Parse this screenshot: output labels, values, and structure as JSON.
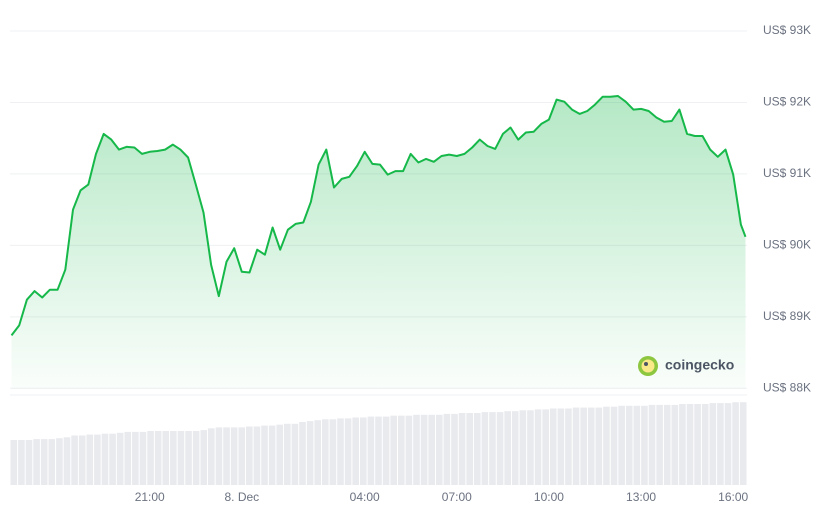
{
  "chart_data": {
    "type": "line",
    "color": "#16b84a",
    "area": true,
    "grid": true,
    "watermark": "coingecko",
    "x": [
      -7.5,
      -7.25,
      -7,
      -6.75,
      -6.5,
      -6.25,
      -6,
      -5.75,
      -5.5,
      -5.25,
      -5,
      -4.75,
      -4.5,
      -4.25,
      -4,
      -3.75,
      -3.5,
      -3.25,
      -3,
      -2.75,
      -2.5,
      -2.25,
      -2,
      -1.75,
      -1.5,
      -1.25,
      -1,
      -0.75,
      -0.5,
      -0.25,
      0,
      0.25,
      0.5,
      0.75,
      1,
      1.25,
      1.5,
      1.75,
      2,
      2.25,
      2.5,
      2.75,
      3,
      3.25,
      3.5,
      3.75,
      4,
      4.25,
      4.5,
      4.75,
      5,
      5.25,
      5.5,
      5.75,
      6,
      6.25,
      6.5,
      6.75,
      7,
      7.25,
      7.5,
      7.75,
      8,
      8.25,
      8.5,
      8.75,
      9,
      9.25,
      9.5,
      9.75,
      10,
      10.25,
      10.5,
      10.75,
      11,
      11.25,
      11.5,
      11.75,
      12,
      12.25,
      12.5,
      12.75,
      13,
      13.25,
      13.5,
      13.75,
      14,
      14.25,
      14.5,
      14.75,
      15,
      15.25,
      15.5,
      15.75,
      16,
      16.25,
      16.4
    ],
    "values": [
      88740,
      88880,
      89240,
      89360,
      89270,
      89380,
      89380,
      89660,
      90500,
      90770,
      90850,
      91280,
      91560,
      91480,
      91340,
      91380,
      91370,
      91280,
      91310,
      91320,
      91340,
      91410,
      91340,
      91230,
      90850,
      90460,
      89730,
      89290,
      89770,
      89960,
      89630,
      89620,
      89940,
      89870,
      90250,
      89940,
      90220,
      90300,
      90320,
      90610,
      91130,
      91340,
      90810,
      90930,
      90960,
      91110,
      91310,
      91140,
      91130,
      90990,
      91040,
      91040,
      91280,
      91160,
      91210,
      91170,
      91250,
      91270,
      91250,
      91280,
      91370,
      91480,
      91390,
      91350,
      91560,
      91650,
      91480,
      91580,
      91590,
      91700,
      91760,
      92040,
      92010,
      91900,
      91840,
      91880,
      91970,
      92080,
      92080,
      92090,
      92010,
      91900,
      91910,
      91880,
      91790,
      91730,
      91740,
      91900,
      91560,
      91530,
      91530,
      91340,
      91240,
      91340,
      90990,
      90290,
      90120
    ],
    "xlim": [
      -7.55,
      16.45
    ],
    "xticks": [
      {
        "value": -3,
        "label": "21:00"
      },
      {
        "value": 0,
        "label": "8. Dec"
      },
      {
        "value": 4,
        "label": "04:00"
      },
      {
        "value": 7,
        "label": "07:00"
      },
      {
        "value": 10,
        "label": "10:00"
      },
      {
        "value": 13,
        "label": "13:00"
      },
      {
        "value": 16,
        "label": "16:00"
      }
    ],
    "ylim": [
      87990,
      93000
    ],
    "yticks": [
      {
        "value": 93000,
        "label": "US$ 93K"
      },
      {
        "value": 92000,
        "label": "US$ 92K"
      },
      {
        "value": 91000,
        "label": "US$ 91K"
      },
      {
        "value": 90000,
        "label": "US$ 90K"
      },
      {
        "value": 89000,
        "label": "US$ 89K"
      },
      {
        "value": 88000,
        "label": "US$ 88K"
      }
    ],
    "volume": {
      "color": "#e8eaee",
      "ylim": [
        0,
        100
      ],
      "values": [
        50,
        50,
        50,
        51,
        51,
        51,
        52,
        53,
        55,
        55,
        56,
        56,
        57,
        57,
        58,
        59,
        59,
        59,
        60,
        60,
        60,
        60,
        60,
        60,
        60,
        61,
        63,
        64,
        64,
        64,
        64,
        65,
        65,
        66,
        66,
        67,
        68,
        68,
        70,
        71,
        72,
        73,
        73,
        74,
        74,
        75,
        75,
        76,
        76,
        76,
        77,
        77,
        77,
        78,
        78,
        78,
        78,
        79,
        79,
        80,
        80,
        80,
        81,
        81,
        81,
        82,
        82,
        83,
        83,
        84,
        84,
        85,
        85,
        85,
        86,
        86,
        86,
        86,
        87,
        87,
        88,
        88,
        88,
        88,
        89,
        89,
        89,
        89,
        90,
        90,
        90,
        90,
        91,
        91,
        91,
        92,
        92
      ]
    }
  }
}
